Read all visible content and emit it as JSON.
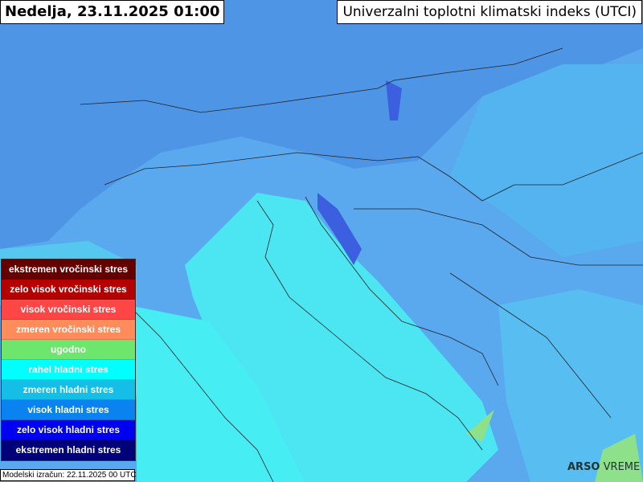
{
  "header": {
    "date": "Nedelja, 23.11.2025 01:00",
    "index_title": "Univerzalni toplotni klimatski indeks (UTCI)"
  },
  "legend": [
    {
      "label": "ekstremen vročinski stres",
      "color": "#640000"
    },
    {
      "label": "zelo visok vročinski stres",
      "color": "#b40000"
    },
    {
      "label": "visok vročinski stres",
      "color": "#ff4646"
    },
    {
      "label": "zmeren vročinski stres",
      "color": "#ff8c5a"
    },
    {
      "label": "ugodno",
      "color": "#6ee66e"
    },
    {
      "label": "rahel hladni stres",
      "color": "#00ffff"
    },
    {
      "label": "zmeren hladni stres",
      "color": "#14bee6"
    },
    {
      "label": "visok hladni stres",
      "color": "#0a82f0"
    },
    {
      "label": "zelo visok hladni stres",
      "color": "#0000f0"
    },
    {
      "label": "ekstremen hladni stres",
      "color": "#000078"
    }
  ],
  "footer": {
    "model_run": "Modelski izračun: 22.11.2025 00 UTC",
    "logo_bold": "ARSO",
    "logo_light": "VREME"
  }
}
